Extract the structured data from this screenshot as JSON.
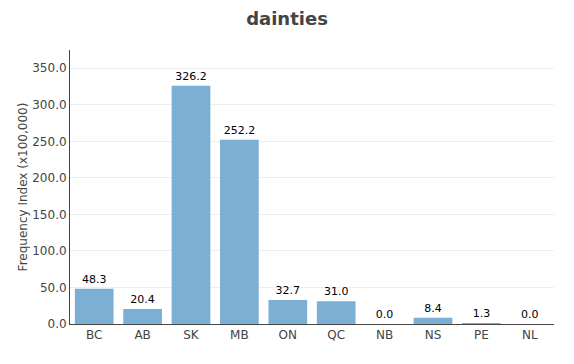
{
  "chart_data": {
    "type": "bar",
    "title": "dainties",
    "categories": [
      "BC",
      "AB",
      "SK",
      "MB",
      "ON",
      "QC",
      "NB",
      "NS",
      "PE",
      "NL"
    ],
    "values": [
      48.3,
      20.4,
      326.2,
      252.2,
      32.7,
      31.0,
      0.0,
      8.4,
      1.3,
      0.0
    ],
    "value_labels": [
      "48.3",
      "20.4",
      "326.2",
      "252.2",
      "32.7",
      "31.0",
      "0.0",
      "8.4",
      "1.3",
      "0.0"
    ],
    "color": "#7bafd4",
    "ylabel": "Frequency Index (x100,000)",
    "ylim": [
      0,
      375
    ],
    "yticks": [
      {
        "value": 0,
        "label": "0.0"
      },
      {
        "value": 50,
        "label": "50.0"
      },
      {
        "value": 100,
        "label": "100.0"
      },
      {
        "value": 150,
        "label": "150.0"
      },
      {
        "value": 200,
        "label": "200.0"
      },
      {
        "value": 250,
        "label": "250.0"
      },
      {
        "value": 300,
        "label": "300.0"
      },
      {
        "value": 350,
        "label": "350.0"
      }
    ],
    "grid": true,
    "data_labels": true
  }
}
